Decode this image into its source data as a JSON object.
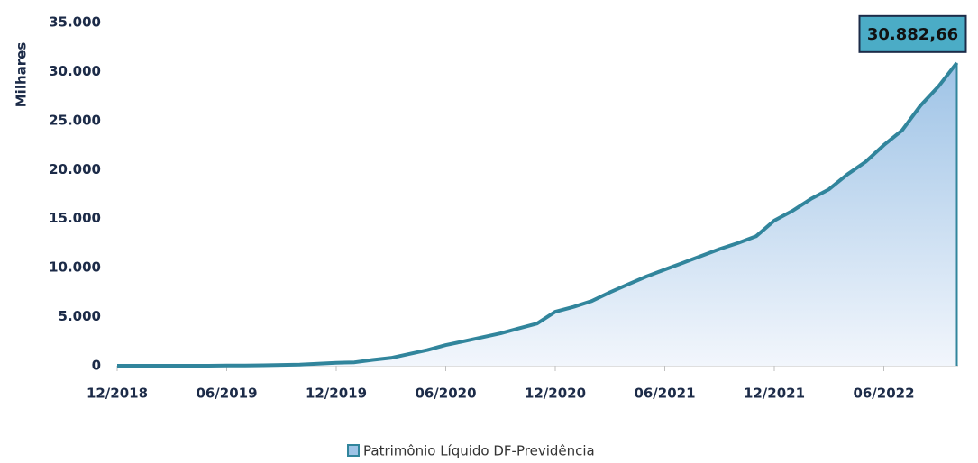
{
  "chart_data": {
    "type": "area",
    "y_label": "Milhares",
    "series": [
      {
        "name": "Patrimônio Líquido DF-Previdência",
        "color": "#31859c",
        "x": [
          "12/2018",
          "01/2019",
          "02/2019",
          "03/2019",
          "04/2019",
          "05/2019",
          "06/2019",
          "07/2019",
          "08/2019",
          "09/2019",
          "10/2019",
          "11/2019",
          "12/2019",
          "01/2020",
          "02/2020",
          "03/2020",
          "04/2020",
          "05/2020",
          "06/2020",
          "07/2020",
          "08/2020",
          "09/2020",
          "10/2020",
          "11/2020",
          "12/2020",
          "01/2021",
          "02/2021",
          "03/2021",
          "04/2021",
          "05/2021",
          "06/2021",
          "07/2021",
          "08/2021",
          "09/2021",
          "10/2021",
          "11/2021",
          "12/2021",
          "01/2022",
          "02/2022",
          "03/2022",
          "04/2022",
          "05/2022",
          "06/2022",
          "07/2022",
          "08/2022",
          "09/2022",
          "10/2022"
        ],
        "values": [
          0,
          0,
          0,
          0,
          0,
          0,
          20,
          30,
          50,
          80,
          120,
          200,
          300,
          350,
          600,
          800,
          1200,
          1600,
          2100,
          2500,
          2900,
          3300,
          3800,
          4300,
          5500,
          6000,
          6600,
          7500,
          8300,
          9100,
          9800,
          10500,
          11200,
          11900,
          12500,
          13200,
          14800,
          15800,
          17000,
          18000,
          19500,
          20800,
          22500,
          24000,
          26500,
          28500,
          30882.66
        ],
        "value_labels": [
          null,
          null,
          null,
          null,
          null,
          null,
          null,
          null,
          null,
          null,
          null,
          null,
          null,
          null,
          null,
          null,
          null,
          null,
          null,
          null,
          null,
          null,
          null,
          null,
          null,
          null,
          null,
          null,
          null,
          null,
          null,
          null,
          null,
          null,
          null,
          null,
          null,
          null,
          null,
          null,
          null,
          null,
          null,
          null,
          null,
          null,
          "30.882,66"
        ]
      }
    ],
    "xticks": [
      "12/2018",
      "06/2019",
      "12/2019",
      "06/2020",
      "12/2020",
      "06/2021",
      "12/2021",
      "06/2022"
    ],
    "ylim": [
      0,
      35000
    ],
    "yticks": [
      {
        "value": 0,
        "label": "0"
      },
      {
        "value": 5000,
        "label": "5.000"
      },
      {
        "value": 10000,
        "label": "10.000"
      },
      {
        "value": 15000,
        "label": "15.000"
      },
      {
        "value": 20000,
        "label": "20.000"
      },
      {
        "value": 25000,
        "label": "25.000"
      },
      {
        "value": 30000,
        "label": "30.000"
      },
      {
        "value": 35000,
        "label": "35.000"
      }
    ],
    "grid": false,
    "legend": "bottom"
  }
}
